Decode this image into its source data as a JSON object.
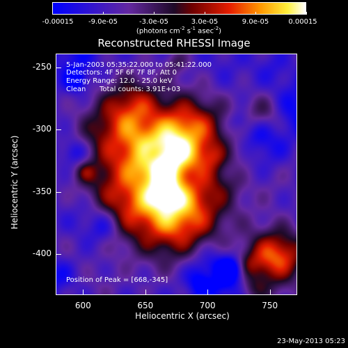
{
  "colorbar": {
    "tick_labels": [
      "-0.00015",
      "-9.0e-05",
      "-3.0e-05",
      "3.0e-05",
      "9.0e-05",
      "0.00015"
    ],
    "tick_values": [
      -0.00015,
      -9e-05,
      -3e-05,
      3e-05,
      9e-05,
      0.00015
    ],
    "units_text": "(photons cm",
    "units_exp1": "-2",
    "units_mid": " s",
    "units_exp2": "-1",
    "units_tail": " asec",
    "units_exp3": "-2",
    "units_end": ")"
  },
  "title": "Reconstructed RHESSI Image",
  "info": {
    "time_range": "5-Jan-2003 05:35:22.000 to 05:41:22.000",
    "detectors": "Detectors: 4F 5F 6F 7F 8F, Att 0",
    "energy": "Energy Range: 12.0 - 25.0 keV",
    "clean": "Clean",
    "total_counts": "Total counts: 3.91E+03",
    "peak": "Position of Peak = [668,-345]"
  },
  "axes": {
    "xlabel": "Heliocentric X (arcsec)",
    "ylabel": "Heliocentric Y (arcsec)",
    "xticks": [
      "600",
      "650",
      "700",
      "750"
    ],
    "xtick_values": [
      600,
      650,
      700,
      750
    ],
    "yticks": [
      "-250",
      "-300",
      "-350",
      "-400"
    ],
    "ytick_values": [
      -250,
      -300,
      -350,
      -400
    ],
    "xlim": [
      578,
      772
    ],
    "ylim": [
      -433,
      -239
    ]
  },
  "peak": {
    "x": 668,
    "y": -345
  },
  "timestamp": "23-May-2013 05:23",
  "colors": {
    "frame": "#ffffff",
    "background": "#000000"
  }
}
